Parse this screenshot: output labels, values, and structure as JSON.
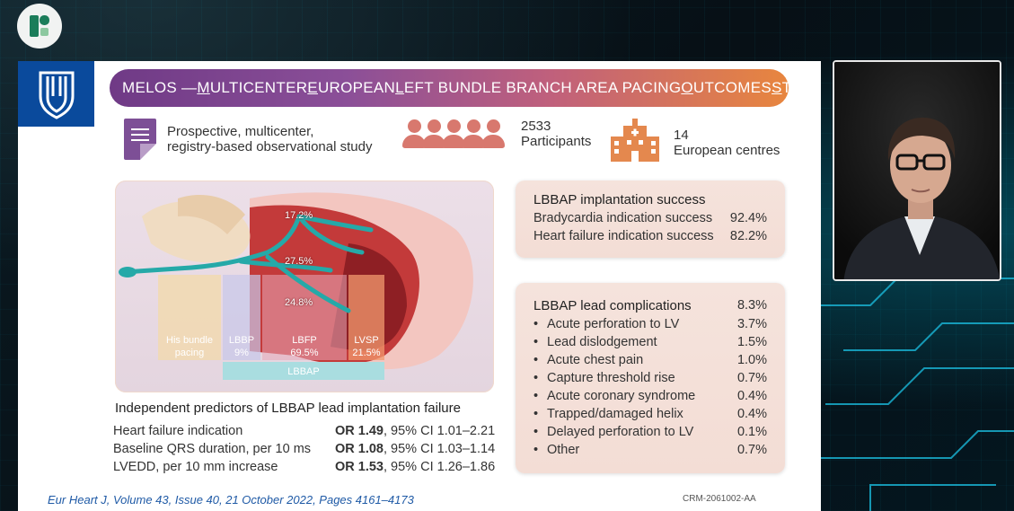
{
  "slide": {
    "title": {
      "prefix": "MELOS — ",
      "parts": [
        {
          "u": "M",
          "r": "ULTICENTER "
        },
        {
          "u": "E",
          "r": "UROPEAN "
        },
        {
          "u": "L",
          "r": "EFT BUNDLE BRANCH AREA PACING "
        },
        {
          "u": "O",
          "r": "UTCOMES "
        },
        {
          "u": "S",
          "r": "TUDY"
        }
      ]
    },
    "study_design": {
      "line1": "Prospective, multicenter,",
      "line2": "registry-based observational study"
    },
    "participants": {
      "count": "2533",
      "label": "Participants"
    },
    "centres": {
      "count": "14",
      "label": "European centres"
    },
    "heart": {
      "pct_top": "17.2%",
      "pct_mid": "27.5%",
      "pct_low": "24.8%",
      "his_label1": "His bundle",
      "his_label2": "pacing",
      "lbbp_label": "LBBP",
      "lbbp_pct": "9%",
      "lbfp_label": "LBFP",
      "lbfp_pct": "69.5%",
      "lvsp_label": "LVSP",
      "lvsp_pct": "21.5%",
      "lbbap_label": "LBBAP"
    },
    "predictors": {
      "title": "Independent predictors of LBBAP lead implantation failure",
      "rows": [
        {
          "label": "Heart failure indication",
          "or": "OR 1.49",
          "ci": ", 95% CI 1.01–2.21"
        },
        {
          "label": "Baseline QRS duration, per 10 ms",
          "or": "OR 1.08",
          "ci": ", 95% CI 1.03–1.14"
        },
        {
          "label": "LVEDD, per 10 mm increase",
          "or": "OR 1.53",
          "ci": ", 95% CI 1.26–1.86"
        }
      ]
    },
    "success": {
      "title": "LBBAP implantation success",
      "rows": [
        {
          "label": "Bradycardia indication success",
          "value": "92.4%"
        },
        {
          "label": "Heart failure indication success",
          "value": "82.2%"
        }
      ]
    },
    "complications": {
      "title": "LBBAP lead complications",
      "total": "8.3%",
      "bullet": "•",
      "rows": [
        {
          "label": "Acute perforation to LV",
          "value": "3.7%"
        },
        {
          "label": "Lead dislodgement",
          "value": "1.5%"
        },
        {
          "label": "Acute chest pain",
          "value": "1.0%"
        },
        {
          "label": "Capture threshold rise",
          "value": "0.7%"
        },
        {
          "label": "Acute coronary syndrome",
          "value": "0.4%"
        },
        {
          "label": "Trapped/damaged helix",
          "value": "0.4%"
        },
        {
          "label": "Delayed perforation to LV",
          "value": "0.1%"
        },
        {
          "label": "Other",
          "value": "0.7%"
        }
      ]
    },
    "citation": "Eur Heart J, Volume 43, Issue 40, 21 October 2022, Pages 4161–4173",
    "crm_code": "CRM-2061002-AA"
  },
  "colors": {
    "duke_blue": "#0a4a9c",
    "title_gradient_start": "#6f3a86",
    "title_gradient_end": "#e8863e",
    "icon_purple": "#7d4f96",
    "icon_coral": "#d8786e",
    "card_bg": "#f5e3dc",
    "citation_blue": "#1f5aa6"
  },
  "icons": [
    "app-logo-icon",
    "duke-shield-icon",
    "document-icon",
    "people-group-icon",
    "hospital-icon",
    "heart-illustration"
  ]
}
